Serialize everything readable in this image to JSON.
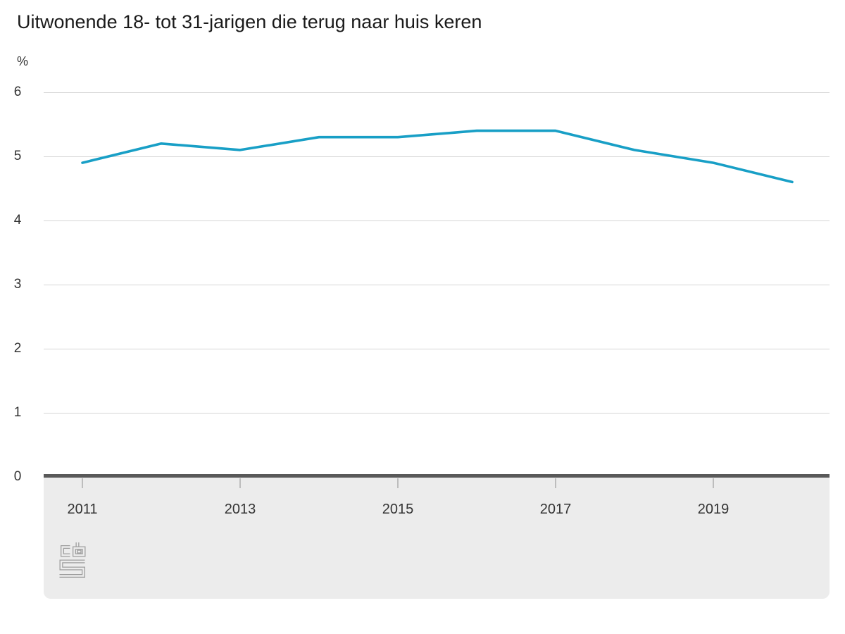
{
  "header": {
    "title": "Uitwonende 18- tot 31-jarigen die terug naar huis keren",
    "unit_label": "%"
  },
  "colors": {
    "line": "#189fc6",
    "gridline": "#d6d6d6",
    "axis_bar": "#595959",
    "axis_panel": "#ececec",
    "tick": "#bdbdbd",
    "text": "#333333",
    "title_text": "#1a1a1a",
    "logo": "#9e9e9e",
    "background": "#ffffff"
  },
  "footer": {
    "logo_name": "cbs-logo"
  },
  "chart_data": {
    "type": "line",
    "title": "Uitwonende 18- tot 31-jarigen die terug naar huis keren",
    "ylabel": "%",
    "xlabel": "",
    "x": [
      2011,
      2012,
      2013,
      2014,
      2015,
      2016,
      2017,
      2018,
      2019,
      2020
    ],
    "series": [
      {
        "name": "Uitwonende 18- tot 31-jarigen die terug naar huis keren",
        "values": [
          4.9,
          5.2,
          5.1,
          5.3,
          5.3,
          5.4,
          5.4,
          5.1,
          4.9,
          4.6
        ]
      }
    ],
    "ylim": [
      0,
      6
    ],
    "y_ticks": [
      0,
      1,
      2,
      3,
      4,
      5,
      6
    ],
    "x_tick_years": [
      2011,
      2013,
      2015,
      2017,
      2019
    ],
    "x_tick_labels": [
      "2011",
      "2013",
      "2015",
      "2017",
      "2019"
    ],
    "grid": true,
    "legend_position": "none"
  }
}
